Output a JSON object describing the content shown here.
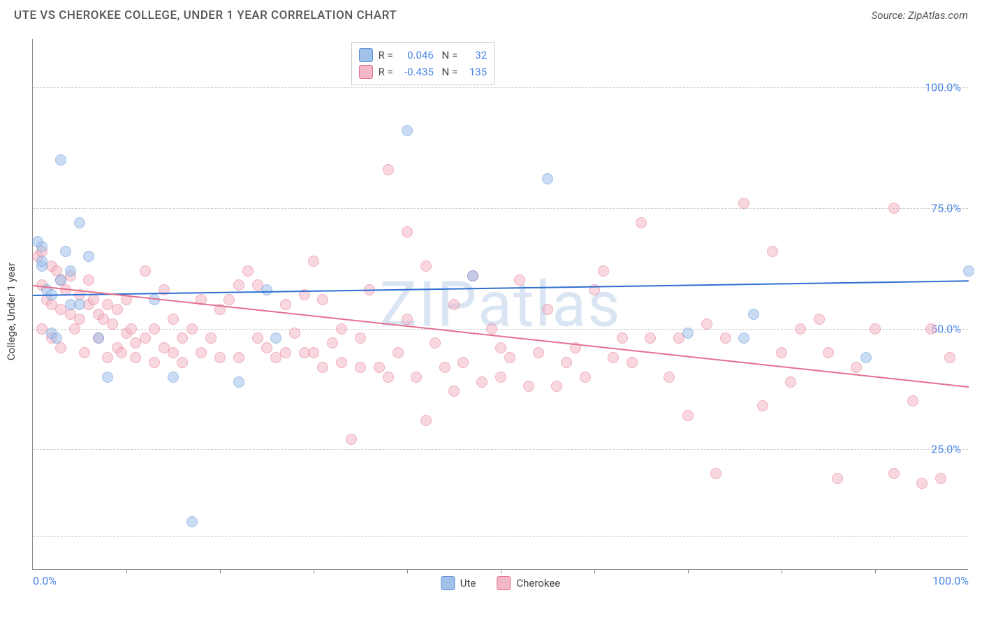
{
  "title": "UTE VS CHEROKEE COLLEGE, UNDER 1 YEAR CORRELATION CHART",
  "source": "Source: ZipAtlas.com",
  "ylabel": "College, Under 1 year",
  "watermark": "ZIPatlas",
  "chart": {
    "type": "scatter",
    "xlim": [
      0,
      100
    ],
    "ylim": [
      0,
      110
    ],
    "background_color": "#ffffff",
    "grid_color": "#cccccc",
    "axis_color": "#888888",
    "marker_radius": 8,
    "marker_opacity": 0.55,
    "marker_stroke_opacity": 0.9,
    "yticks": [
      {
        "v": 25,
        "label": "25.0%"
      },
      {
        "v": 50,
        "label": "50.0%"
      },
      {
        "v": 75,
        "label": "75.0%"
      },
      {
        "v": 100,
        "label": "100.0%"
      }
    ],
    "xticks_labeled": [
      {
        "v": 0,
        "label": "0.0%"
      },
      {
        "v": 100,
        "label": "100.0%"
      }
    ],
    "xticks_marks": [
      10,
      20,
      30,
      40,
      50,
      60,
      70,
      80,
      90
    ],
    "gridlines_y": [
      7,
      25,
      50,
      75,
      100
    ],
    "series": [
      {
        "name": "Ute",
        "fill": "#9fc1ea",
        "stroke": "#5b8fd6",
        "trend_color": "#2e6fd1",
        "trend": {
          "x1": 0,
          "y1": 57,
          "x2": 100,
          "y2": 60
        },
        "R": "0.046",
        "N": "32",
        "points": [
          [
            1,
            67
          ],
          [
            1,
            63
          ],
          [
            1.5,
            58
          ],
          [
            2,
            49
          ],
          [
            2.5,
            48
          ],
          [
            3,
            85
          ],
          [
            3.5,
            66
          ],
          [
            4,
            62
          ],
          [
            5,
            72
          ],
          [
            6,
            65
          ],
          [
            7,
            48
          ],
          [
            8,
            40
          ],
          [
            13,
            56
          ],
          [
            15,
            40
          ],
          [
            17,
            10
          ],
          [
            22,
            39
          ],
          [
            25,
            58
          ],
          [
            26,
            48
          ],
          [
            40,
            91
          ],
          [
            47,
            61
          ],
          [
            55,
            81
          ],
          [
            70,
            49
          ],
          [
            76,
            48
          ],
          [
            77,
            53
          ],
          [
            89,
            44
          ],
          [
            100,
            62
          ],
          [
            1,
            64
          ],
          [
            2,
            57
          ],
          [
            3,
            60
          ],
          [
            4,
            55
          ],
          [
            5,
            55
          ],
          [
            0.5,
            68
          ]
        ]
      },
      {
        "name": "Cherokee",
        "fill": "#f4b7c6",
        "stroke": "#e4708e",
        "trend_color": "#e4708e",
        "trend": {
          "x1": 0,
          "y1": 59,
          "x2": 100,
          "y2": 38
        },
        "R": "-0.435",
        "N": "135",
        "points": [
          [
            0.5,
            65
          ],
          [
            1,
            59
          ],
          [
            1,
            66
          ],
          [
            1.5,
            56
          ],
          [
            2,
            63
          ],
          [
            2,
            55
          ],
          [
            2.5,
            62
          ],
          [
            3,
            54
          ],
          [
            3,
            60
          ],
          [
            3.5,
            58
          ],
          [
            4,
            53
          ],
          [
            4,
            61
          ],
          [
            4.5,
            50
          ],
          [
            5,
            52
          ],
          [
            5,
            57
          ],
          [
            5.5,
            45
          ],
          [
            6,
            55
          ],
          [
            6,
            60
          ],
          [
            6.5,
            56
          ],
          [
            7,
            53
          ],
          [
            7,
            48
          ],
          [
            7.5,
            52
          ],
          [
            8,
            44
          ],
          [
            8,
            55
          ],
          [
            8.5,
            51
          ],
          [
            9,
            54
          ],
          [
            9,
            46
          ],
          [
            9.5,
            45
          ],
          [
            10,
            49
          ],
          [
            10,
            56
          ],
          [
            10.5,
            50
          ],
          [
            11,
            47
          ],
          [
            11,
            44
          ],
          [
            12,
            62
          ],
          [
            12,
            48
          ],
          [
            13,
            50
          ],
          [
            13,
            43
          ],
          [
            14,
            58
          ],
          [
            14,
            46
          ],
          [
            15,
            45
          ],
          [
            15,
            52
          ],
          [
            16,
            48
          ],
          [
            16,
            43
          ],
          [
            17,
            50
          ],
          [
            18,
            45
          ],
          [
            18,
            56
          ],
          [
            19,
            48
          ],
          [
            20,
            54
          ],
          [
            20,
            44
          ],
          [
            21,
            56
          ],
          [
            22,
            59
          ],
          [
            22,
            44
          ],
          [
            23,
            62
          ],
          [
            24,
            48
          ],
          [
            24,
            59
          ],
          [
            25,
            46
          ],
          [
            26,
            44
          ],
          [
            27,
            55
          ],
          [
            27,
            45
          ],
          [
            28,
            49
          ],
          [
            29,
            45
          ],
          [
            29,
            57
          ],
          [
            30,
            64
          ],
          [
            30,
            45
          ],
          [
            31,
            56
          ],
          [
            31,
            42
          ],
          [
            32,
            47
          ],
          [
            33,
            50
          ],
          [
            33,
            43
          ],
          [
            34,
            27
          ],
          [
            35,
            48
          ],
          [
            35,
            42
          ],
          [
            36,
            58
          ],
          [
            37,
            42
          ],
          [
            38,
            83
          ],
          [
            38,
            40
          ],
          [
            39,
            45
          ],
          [
            40,
            52
          ],
          [
            40,
            70
          ],
          [
            41,
            40
          ],
          [
            42,
            63
          ],
          [
            42,
            31
          ],
          [
            43,
            47
          ],
          [
            44,
            42
          ],
          [
            45,
            55
          ],
          [
            45,
            37
          ],
          [
            46,
            43
          ],
          [
            47,
            61
          ],
          [
            48,
            39
          ],
          [
            49,
            50
          ],
          [
            50,
            46
          ],
          [
            50,
            40
          ],
          [
            51,
            44
          ],
          [
            52,
            60
          ],
          [
            53,
            38
          ],
          [
            54,
            45
          ],
          [
            55,
            54
          ],
          [
            56,
            38
          ],
          [
            57,
            43
          ],
          [
            58,
            46
          ],
          [
            59,
            40
          ],
          [
            60,
            58
          ],
          [
            61,
            62
          ],
          [
            62,
            44
          ],
          [
            63,
            48
          ],
          [
            64,
            43
          ],
          [
            65,
            72
          ],
          [
            66,
            48
          ],
          [
            68,
            40
          ],
          [
            69,
            48
          ],
          [
            70,
            32
          ],
          [
            72,
            51
          ],
          [
            73,
            20
          ],
          [
            74,
            48
          ],
          [
            76,
            76
          ],
          [
            78,
            34
          ],
          [
            79,
            66
          ],
          [
            80,
            45
          ],
          [
            81,
            39
          ],
          [
            82,
            50
          ],
          [
            84,
            52
          ],
          [
            85,
            45
          ],
          [
            86,
            19
          ],
          [
            88,
            42
          ],
          [
            90,
            50
          ],
          [
            92,
            20
          ],
          [
            92,
            75
          ],
          [
            94,
            35
          ],
          [
            95,
            18
          ],
          [
            96,
            50
          ],
          [
            97,
            19
          ],
          [
            98,
            44
          ],
          [
            1,
            50
          ],
          [
            2,
            48
          ],
          [
            3,
            46
          ]
        ]
      }
    ]
  },
  "legend_bottom": [
    {
      "swatch_fill": "#9fc1ea",
      "swatch_stroke": "#5b8fd6",
      "label": "Ute"
    },
    {
      "swatch_fill": "#f4b7c6",
      "swatch_stroke": "#e4708e",
      "label": "Cherokee"
    }
  ]
}
